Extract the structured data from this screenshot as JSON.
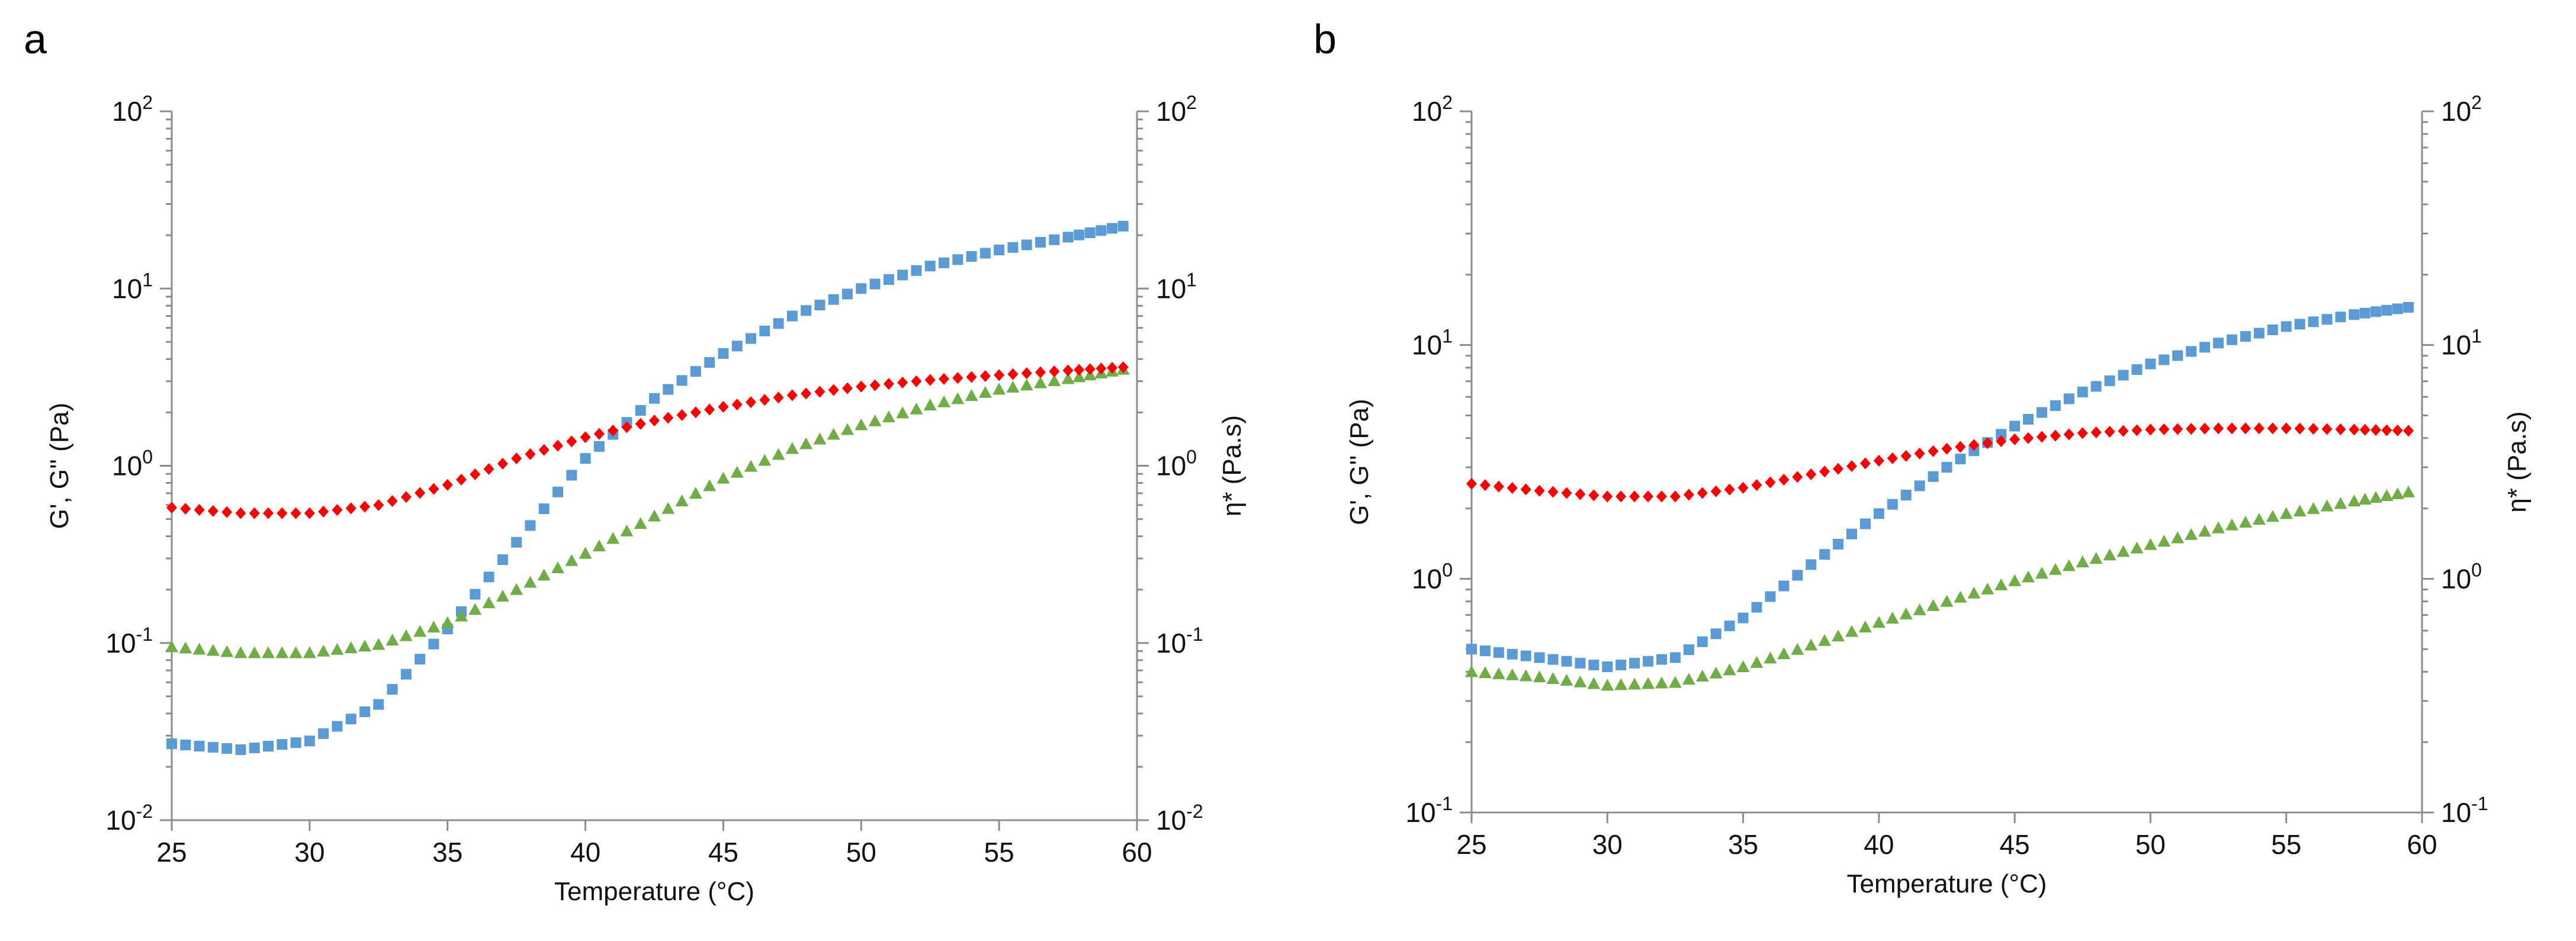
{
  "colors": {
    "G_prime": "#5b9bd5",
    "G_double_prime": "#70ad47",
    "eta_star": "#ff0000"
  },
  "chart_data": [
    {
      "type": "scatter",
      "panel": "a",
      "xlabel": "Temperature (°C)",
      "ylabel": "G', G'' (Pa)",
      "y2label": "η* (Pa.s)",
      "xlim": [
        25,
        60
      ],
      "ylim": [
        0.01,
        100
      ],
      "y2lim": [
        0.01,
        100
      ],
      "yscale": "log",
      "grid": false,
      "x_ticks": [
        "25",
        "30",
        "35",
        "40",
        "45",
        "50",
        "55",
        "60"
      ],
      "y_ticks": [
        {
          "value": 0.01,
          "base": "10",
          "exp": "-2"
        },
        {
          "value": 0.1,
          "base": "10",
          "exp": "-1"
        },
        {
          "value": 1,
          "base": "10",
          "exp": "0"
        },
        {
          "value": 10,
          "base": "10",
          "exp": "1"
        },
        {
          "value": 100,
          "base": "10",
          "exp": "2"
        }
      ],
      "series": [
        {
          "name": "G'",
          "marker": "square",
          "color_key": "G_prime",
          "x": [
            25,
            27.5,
            30,
            32.5,
            35,
            37.5,
            40,
            42.5,
            45,
            47.5,
            50,
            52.5,
            55,
            57.5,
            59.5
          ],
          "y": [
            0.027,
            0.025,
            0.028,
            0.045,
            0.12,
            0.37,
            1.1,
            2.4,
            4.3,
            7.0,
            10,
            13.4,
            16.5,
            19.5,
            22.5
          ]
        },
        {
          "name": "G''",
          "marker": "triangle",
          "color_key": "G_double_prime",
          "x": [
            25,
            27.5,
            30,
            32.5,
            35,
            37.5,
            40,
            42.5,
            45,
            47.5,
            50,
            52.5,
            55,
            57.5,
            59.5
          ],
          "y": [
            0.095,
            0.088,
            0.088,
            0.098,
            0.13,
            0.2,
            0.32,
            0.52,
            0.85,
            1.25,
            1.7,
            2.2,
            2.7,
            3.1,
            3.5
          ]
        },
        {
          "name": "η*",
          "marker": "diamond",
          "color_key": "eta_star",
          "axis": "right",
          "x": [
            25,
            27.5,
            30,
            32.5,
            35,
            37.5,
            40,
            42.5,
            45,
            47.5,
            50,
            52.5,
            55,
            57.5,
            59.5
          ],
          "y": [
            0.58,
            0.54,
            0.54,
            0.6,
            0.78,
            1.1,
            1.45,
            1.8,
            2.15,
            2.5,
            2.8,
            3.05,
            3.25,
            3.45,
            3.6
          ]
        }
      ]
    },
    {
      "type": "scatter",
      "panel": "b",
      "xlabel": "Temperature (°C)",
      "ylabel": "G', G'' (Pa)",
      "y2label": "η* (Pa.s)",
      "xlim": [
        25,
        60
      ],
      "ylim": [
        0.1,
        100
      ],
      "y2lim": [
        0.1,
        100
      ],
      "yscale": "log",
      "grid": false,
      "x_ticks": [
        "25",
        "30",
        "35",
        "40",
        "45",
        "50",
        "55",
        "60"
      ],
      "y_ticks": [
        {
          "value": 0.1,
          "base": "10",
          "exp": "-1"
        },
        {
          "value": 1,
          "base": "10",
          "exp": "0"
        },
        {
          "value": 10,
          "base": "10",
          "exp": "1"
        },
        {
          "value": 100,
          "base": "10",
          "exp": "2"
        }
      ],
      "series": [
        {
          "name": "G'",
          "marker": "square",
          "color_key": "G_prime",
          "x": [
            25,
            27.5,
            30,
            32.5,
            35,
            37.5,
            40,
            42.5,
            45,
            47.5,
            50,
            52.5,
            55,
            57.5,
            59.5
          ],
          "y": [
            0.5,
            0.46,
            0.42,
            0.46,
            0.68,
            1.15,
            1.9,
            3.0,
            4.5,
            6.3,
            8.3,
            10.2,
            12.0,
            13.5,
            14.5
          ]
        },
        {
          "name": "G''",
          "marker": "triangle",
          "color_key": "G_double_prime",
          "x": [
            25,
            27.5,
            30,
            32.5,
            35,
            37.5,
            40,
            42.5,
            45,
            47.5,
            50,
            52.5,
            55,
            57.5,
            59.5
          ],
          "y": [
            0.4,
            0.38,
            0.35,
            0.36,
            0.42,
            0.52,
            0.65,
            0.8,
            0.98,
            1.18,
            1.4,
            1.65,
            1.9,
            2.15,
            2.35
          ]
        },
        {
          "name": "η*",
          "marker": "diamond",
          "color_key": "eta_star",
          "axis": "right",
          "x": [
            25,
            27.5,
            30,
            32.5,
            35,
            37.5,
            40,
            42.5,
            45,
            47.5,
            50,
            52.5,
            55,
            57.5,
            59.5
          ],
          "y": [
            2.55,
            2.38,
            2.25,
            2.25,
            2.45,
            2.8,
            3.2,
            3.6,
            3.95,
            4.2,
            4.35,
            4.4,
            4.4,
            4.35,
            4.3
          ]
        }
      ]
    }
  ]
}
